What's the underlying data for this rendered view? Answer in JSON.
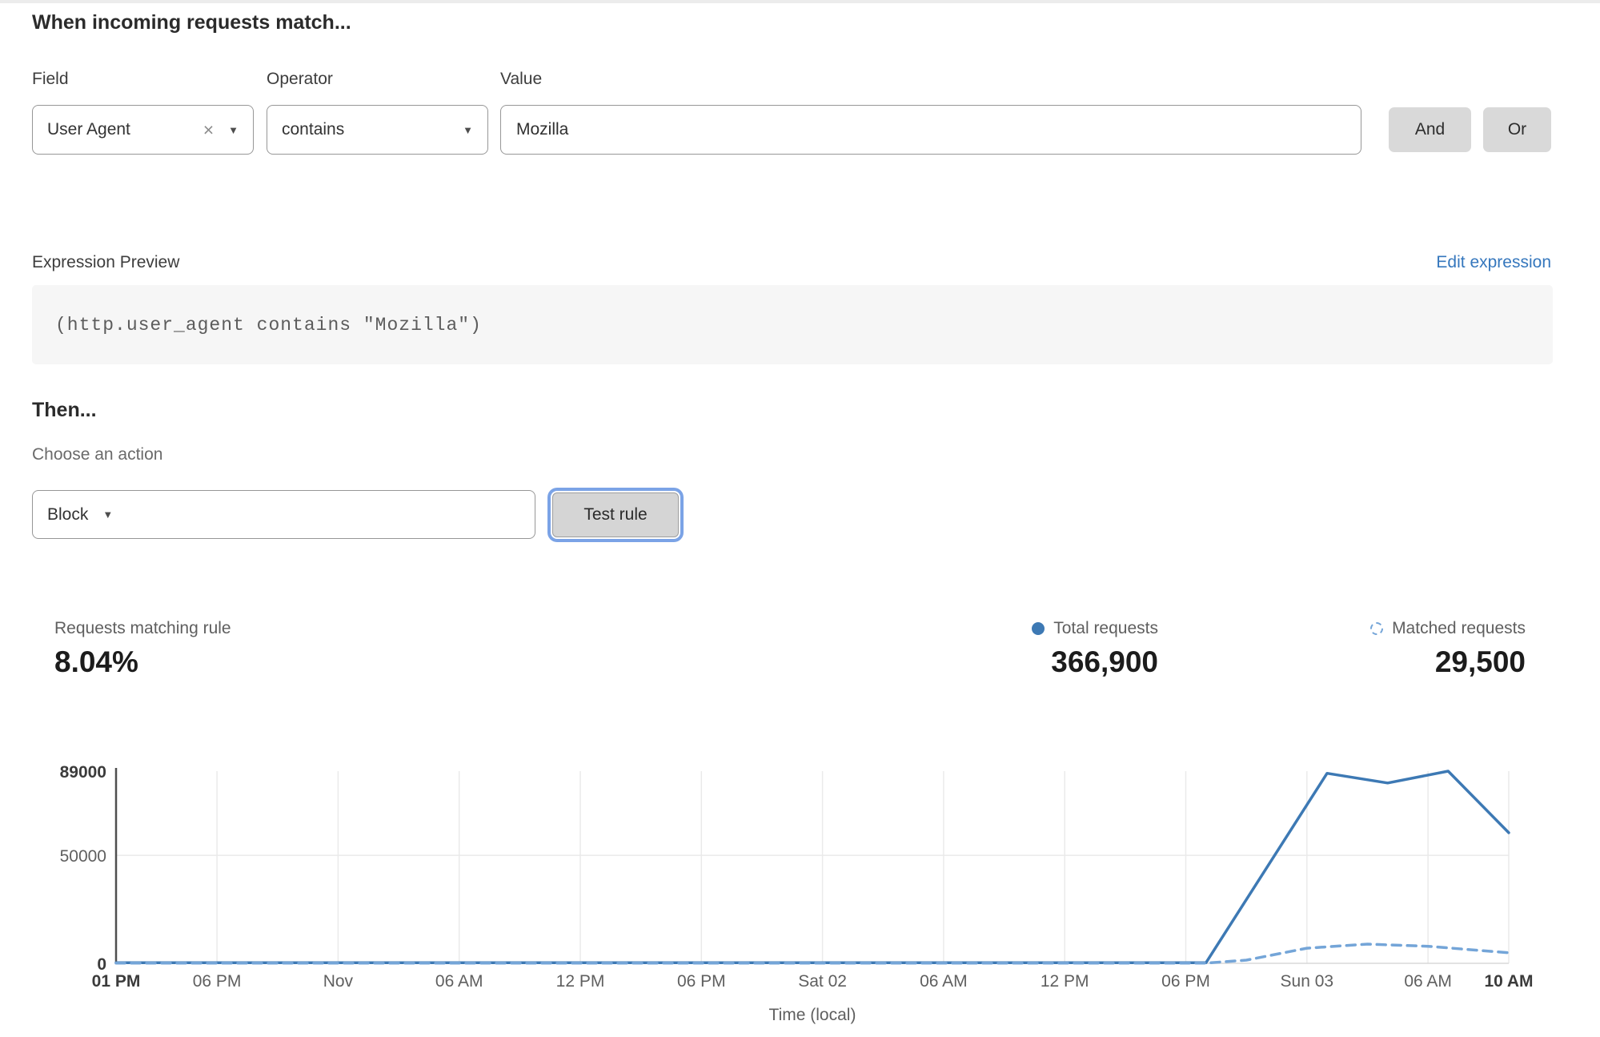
{
  "rule_builder": {
    "heading": "When incoming requests match...",
    "field": {
      "label": "Field",
      "value": "User Agent",
      "clear_icon": "×",
      "caret_icon": "▼"
    },
    "operator": {
      "label": "Operator",
      "value": "contains",
      "caret_icon": "▼"
    },
    "value": {
      "label": "Value",
      "value": "Mozilla"
    },
    "and_button": "And",
    "or_button": "Or"
  },
  "expression": {
    "label": "Expression Preview",
    "edit_link": "Edit expression",
    "code": "(http.user_agent contains \"Mozilla\")"
  },
  "action": {
    "heading": "Then...",
    "label": "Choose an action",
    "selected": "Block",
    "caret_icon": "▼",
    "test_button": "Test rule"
  },
  "stats": {
    "matching": {
      "label": "Requests matching rule",
      "value": "8.04%"
    },
    "total": {
      "label": "Total requests",
      "value": "366,900"
    },
    "matched": {
      "label": "Matched requests",
      "value": "29,500"
    }
  },
  "colors": {
    "link_blue": "#3577bd",
    "total_line": "#3d79b4",
    "matched_line": "#74a5d8",
    "grid": "#eaeaea",
    "axis": "#4f4f4f",
    "tick_text": "#5f5f5f",
    "tick_text_bold": "#3b3b3b"
  },
  "chart_data": {
    "type": "line",
    "title": "",
    "xlabel": "Time (local)",
    "ylabel": "",
    "ylim": [
      0,
      89000
    ],
    "t_max": 69,
    "grid": true,
    "legend_position": "above-right",
    "yticks": [
      {
        "value": 0,
        "label": "0",
        "bold": true
      },
      {
        "value": 50000,
        "label": "50000",
        "bold": false
      },
      {
        "value": 89000,
        "label": "89000",
        "bold": true
      }
    ],
    "xticks": [
      {
        "t": 0,
        "label": "01 PM",
        "bold": true
      },
      {
        "t": 5,
        "label": "06 PM",
        "bold": false
      },
      {
        "t": 11,
        "label": "Nov",
        "bold": false
      },
      {
        "t": 17,
        "label": "06 AM",
        "bold": false
      },
      {
        "t": 23,
        "label": "12 PM",
        "bold": false
      },
      {
        "t": 29,
        "label": "06 PM",
        "bold": false
      },
      {
        "t": 35,
        "label": "Sat 02",
        "bold": false
      },
      {
        "t": 41,
        "label": "06 AM",
        "bold": false
      },
      {
        "t": 47,
        "label": "12 PM",
        "bold": false
      },
      {
        "t": 53,
        "label": "06 PM",
        "bold": false
      },
      {
        "t": 59,
        "label": "Sun 03",
        "bold": false
      },
      {
        "t": 65,
        "label": "06 AM",
        "bold": false
      },
      {
        "t": 69,
        "label": "10 AM",
        "bold": true
      }
    ],
    "series": [
      {
        "name": "Total requests",
        "style": "solid",
        "color": "#3d79b4",
        "points": [
          [
            0,
            250
          ],
          [
            54,
            250
          ],
          [
            60,
            88000
          ],
          [
            63,
            83500
          ],
          [
            66,
            89000
          ],
          [
            69,
            60500
          ]
        ]
      },
      {
        "name": "Matched requests",
        "style": "dashed",
        "color": "#74a5d8",
        "points": [
          [
            0,
            120
          ],
          [
            54,
            120
          ],
          [
            56,
            1500
          ],
          [
            59,
            7000
          ],
          [
            62,
            8900
          ],
          [
            65,
            7900
          ],
          [
            69,
            4900
          ]
        ]
      }
    ]
  }
}
